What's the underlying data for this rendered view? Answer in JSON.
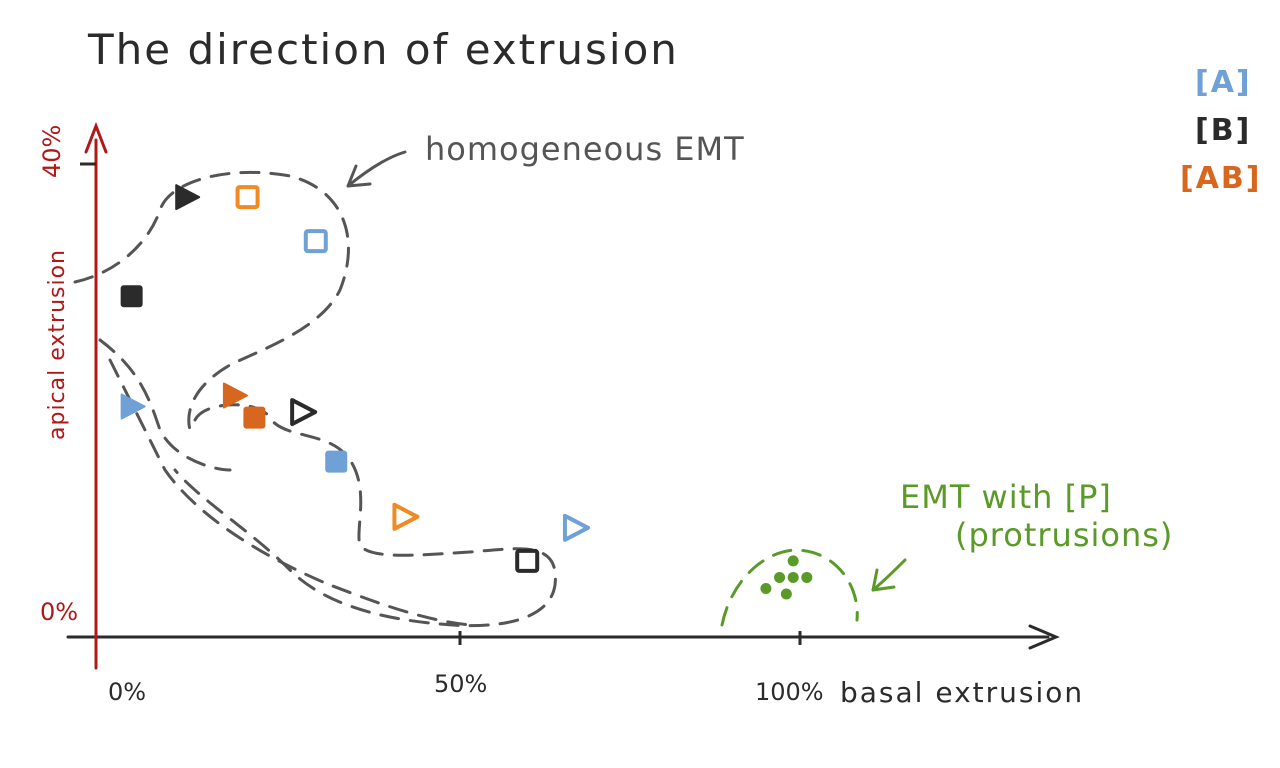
{
  "chart_data": {
    "type": "scatter",
    "title": "The direction of extrusion",
    "xlabel": "basal extrusion",
    "ylabel": "apical extrusion",
    "xlim": [
      0,
      100
    ],
    "ylim": [
      0,
      40
    ],
    "x_ticks": [
      "0%",
      "50%",
      "100%"
    ],
    "y_ticks": [
      "0%",
      "40%"
    ],
    "legend_position": "top-right",
    "legend": [
      {
        "label": "[A]",
        "color": "#6fa0d6"
      },
      {
        "label": "[B]",
        "color": "#2b2b2b"
      },
      {
        "label": "[AB]",
        "color": "#d7661e"
      }
    ],
    "annotations": [
      {
        "text": "homogeneous EMT",
        "color": "#555555"
      },
      {
        "text": "EMT with [P]",
        "color": "#5a9a28"
      },
      {
        "text": "(protrusions)",
        "color": "#5a9a28"
      }
    ],
    "points": [
      {
        "group": "B",
        "marker": "triangle",
        "filled": true,
        "x": 10,
        "y": 37,
        "color": "#2b2b2b"
      },
      {
        "group": "AB",
        "marker": "square",
        "filled": false,
        "x": 19,
        "y": 37,
        "color": "#f08a24"
      },
      {
        "group": "A",
        "marker": "square",
        "filled": false,
        "x": 29,
        "y": 33,
        "color": "#6fa0d6"
      },
      {
        "group": "B",
        "marker": "square",
        "filled": true,
        "x": 2,
        "y": 28,
        "color": "#2b2b2b"
      },
      {
        "group": "A",
        "marker": "triangle",
        "filled": true,
        "x": 2,
        "y": 18,
        "color": "#6fa0d6"
      },
      {
        "group": "AB",
        "marker": "triangle",
        "filled": true,
        "x": 17,
        "y": 19,
        "color": "#d7661e"
      },
      {
        "group": "AB",
        "marker": "square",
        "filled": true,
        "x": 20,
        "y": 17,
        "color": "#d7661e"
      },
      {
        "group": "B",
        "marker": "triangle",
        "filled": false,
        "x": 27,
        "y": 17.5,
        "color": "#2b2b2b"
      },
      {
        "group": "A",
        "marker": "square",
        "filled": true,
        "x": 32,
        "y": 13,
        "color": "#6fa0d6"
      },
      {
        "group": "AB",
        "marker": "triangle",
        "filled": false,
        "x": 42,
        "y": 8,
        "color": "#f08a24"
      },
      {
        "group": "A",
        "marker": "triangle",
        "filled": false,
        "x": 67,
        "y": 7,
        "color": "#6fa0d6"
      },
      {
        "group": "B",
        "marker": "square",
        "filled": false,
        "x": 60,
        "y": 4,
        "color": "#2b2b2b"
      },
      {
        "group": "P",
        "marker": "dot",
        "filled": true,
        "x": 99,
        "y": 4,
        "color": "#5a9a28"
      },
      {
        "group": "P",
        "marker": "dot",
        "filled": true,
        "x": 97,
        "y": 2.5,
        "color": "#5a9a28"
      },
      {
        "group": "P",
        "marker": "dot",
        "filled": true,
        "x": 99,
        "y": 2.5,
        "color": "#5a9a28"
      },
      {
        "group": "P",
        "marker": "dot",
        "filled": true,
        "x": 101,
        "y": 2.5,
        "color": "#5a9a28"
      },
      {
        "group": "P",
        "marker": "dot",
        "filled": true,
        "x": 95,
        "y": 1.5,
        "color": "#5a9a28"
      },
      {
        "group": "P",
        "marker": "dot",
        "filled": true,
        "x": 98,
        "y": 1,
        "color": "#5a9a28"
      }
    ]
  }
}
